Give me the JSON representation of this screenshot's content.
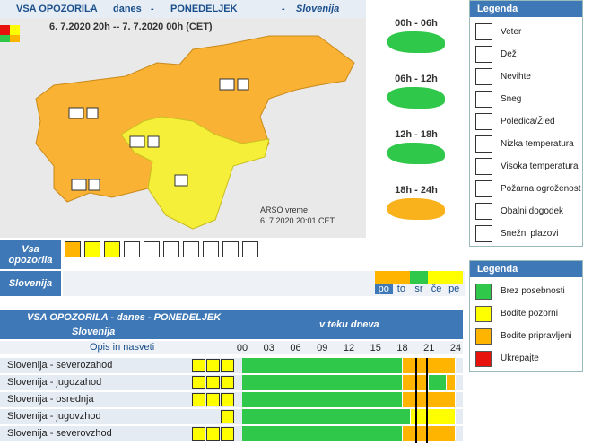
{
  "header": {
    "parts": [
      "VSA OPOZORILA",
      "-",
      "danes",
      "-",
      "PONEDELJEK",
      "-",
      "Slovenija"
    ]
  },
  "map": {
    "period": "6. 7.2020 20h -- 7. 7.2020 00h (CET)",
    "source": "ARSO vreme",
    "issued": "6. 7.2020 20:01 CET"
  },
  "time_slots": [
    {
      "label": "00h - 06h",
      "color": "#2fc84a"
    },
    {
      "label": "06h - 12h",
      "color": "#2fc84a"
    },
    {
      "label": "12h - 18h",
      "color": "#2fc84a"
    },
    {
      "label": "18h - 24h",
      "color": "#f9b21c"
    }
  ],
  "hazard_legend": {
    "title": "Legenda",
    "items": [
      "Veter",
      "Dež",
      "Nevihte",
      "Sneg",
      "Poledica/Žled",
      "Nizka temperatura",
      "Visoka temperatura",
      "Požarna ogroženost",
      "Obalni dogodek",
      "Snežni plazovi"
    ]
  },
  "level_legend": {
    "title": "Legenda",
    "items": [
      {
        "label": "Brez posebnosti",
        "color": "#2fc84a"
      },
      {
        "label": "Bodite pozorni",
        "color": "#ffff00"
      },
      {
        "label": "Bodite pripravljeni",
        "color": "#ffb400"
      },
      {
        "label": "Ukrepajte",
        "color": "#e8120c"
      }
    ]
  },
  "all_warnings": {
    "label": "Vsa opozorila"
  },
  "region_days": {
    "label": "Slovenija",
    "days": [
      {
        "label": "po",
        "color": "#ffb400"
      },
      {
        "label": "to",
        "color": "#ffb400"
      },
      {
        "label": "sr",
        "color": "#2fc84a"
      },
      {
        "label": "če",
        "color": "#ffff00"
      },
      {
        "label": "pe",
        "color": "#ffff00"
      }
    ]
  },
  "table": {
    "title": "VSA OPOZORILA - danes - PONEDELJEK",
    "subtitle": "Slovenija",
    "during_day": "v teku dneva",
    "desc": "Opis in nasveti",
    "hours": [
      "00",
      "03",
      "06",
      "09",
      "12",
      "15",
      "18",
      "21",
      "24"
    ],
    "hour_range": [
      0,
      24
    ],
    "now": [
      19.5,
      20.7
    ],
    "rows": [
      {
        "name": "Slovenija - severozahod",
        "segments": [
          {
            "from": 0,
            "to": 18,
            "color": "#2fc84a"
          },
          {
            "from": 18,
            "to": 24,
            "color": "#ffb400"
          }
        ]
      },
      {
        "name": "Slovenija - jugozahod",
        "segments": [
          {
            "from": 0,
            "to": 18,
            "color": "#2fc84a"
          },
          {
            "from": 18,
            "to": 21,
            "color": "#ffb400"
          },
          {
            "from": 21,
            "to": 23,
            "color": "#2fc84a"
          },
          {
            "from": 23,
            "to": 24,
            "color": "#ffb400"
          }
        ]
      },
      {
        "name": "Slovenija - osrednja",
        "segments": [
          {
            "from": 0,
            "to": 18,
            "color": "#2fc84a"
          },
          {
            "from": 18,
            "to": 24,
            "color": "#ffb400"
          }
        ]
      },
      {
        "name": "Slovenija - jugovzhod",
        "segments": [
          {
            "from": 0,
            "to": 19,
            "color": "#2fc84a"
          },
          {
            "from": 19,
            "to": 24,
            "color": "#ffff00"
          }
        ]
      },
      {
        "name": "Slovenija - severovzhod",
        "segments": [
          {
            "from": 0,
            "to": 18,
            "color": "#2fc84a"
          },
          {
            "from": 18,
            "to": 24,
            "color": "#ffb400"
          }
        ]
      }
    ]
  }
}
